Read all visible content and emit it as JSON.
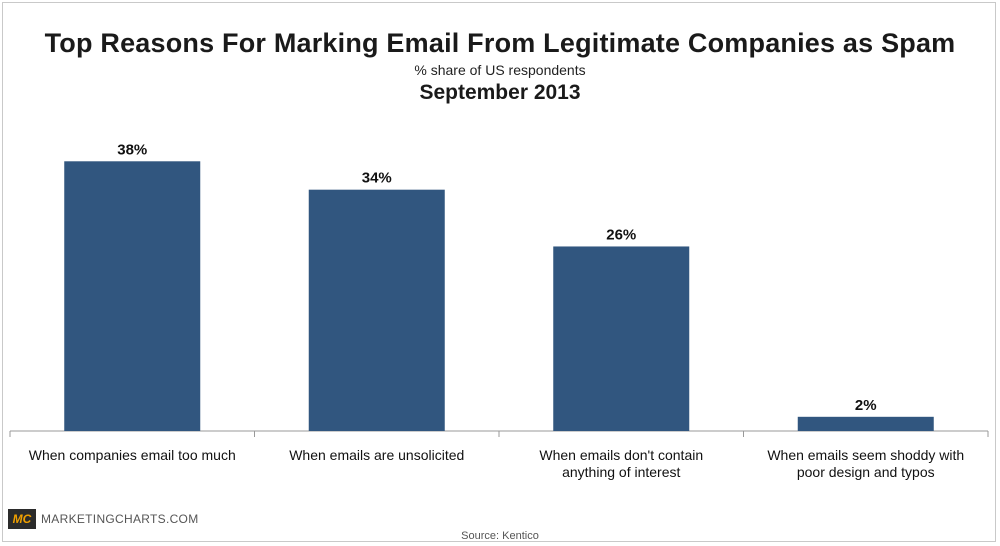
{
  "chart_data": {
    "type": "bar",
    "title": "Top Reasons For Marking Email From Legitimate Companies as Spam",
    "subtitle": "% share of US respondents",
    "date": "September 2013",
    "categories": [
      [
        "When companies email too much"
      ],
      [
        "When emails are unsolicited"
      ],
      [
        "When emails don't contain",
        "anything of interest"
      ],
      [
        "When emails seem shoddy with",
        "poor design and typos"
      ]
    ],
    "values": [
      38,
      34,
      26,
      2
    ],
    "value_labels": [
      "38%",
      "34%",
      "26%",
      "2%"
    ],
    "ylim": [
      0,
      41
    ],
    "bar_color": "#31567f",
    "xlabel": "",
    "ylabel": ""
  },
  "footer": {
    "logo": "MC",
    "brand": "MARKETINGCHARTS.COM",
    "source": "Source: Kentico"
  }
}
